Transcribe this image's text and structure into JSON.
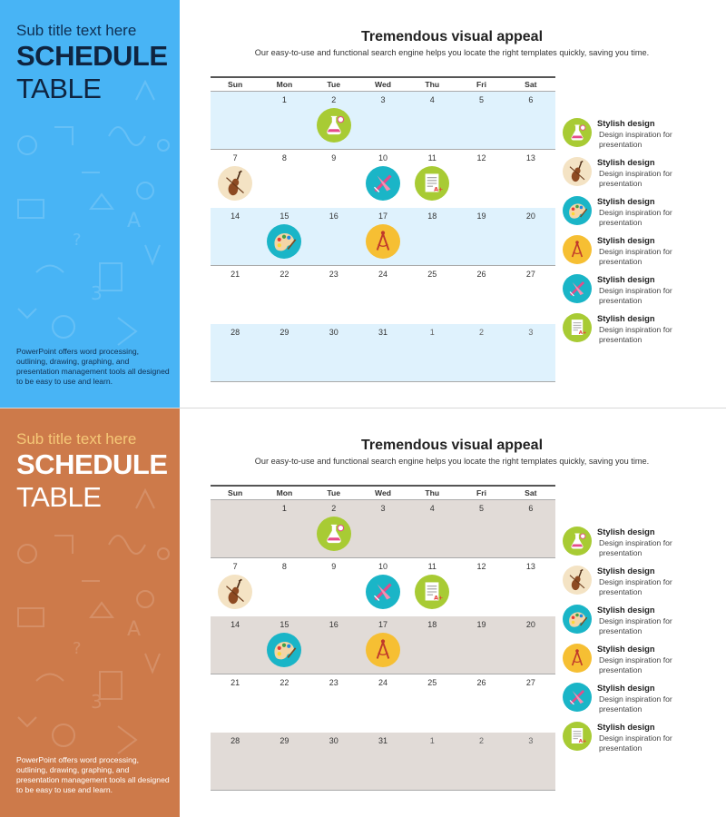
{
  "slides": [
    {
      "theme": "blue",
      "side_color": "#48b4f5",
      "subtitle": "Sub title text here",
      "heading_bold": "SCHEDULE",
      "heading_light": "TABLE",
      "side_text": "PowerPoint offers word processing, outlining, drawing, graphing, and presentation management tools all designed to be easy to use and learn.",
      "title": "Tremendous visual appeal",
      "description": "Our easy-to-use and functional search engine helps you locate the right templates quickly, saving you time.",
      "calendar": {
        "days": [
          "Sun",
          "Mon",
          "Tue",
          "Wed",
          "Thu",
          "Fri",
          "Sat"
        ],
        "weeks": [
          [
            {
              "n": ""
            },
            {
              "n": "1"
            },
            {
              "n": "2",
              "icon": "flask-icon"
            },
            {
              "n": "3"
            },
            {
              "n": "4"
            },
            {
              "n": "5"
            },
            {
              "n": "6"
            }
          ],
          [
            {
              "n": "7",
              "icon": "violin-icon"
            },
            {
              "n": "8"
            },
            {
              "n": "9"
            },
            {
              "n": "10",
              "icon": "ruler-icon"
            },
            {
              "n": "11",
              "icon": "document-icon"
            },
            {
              "n": "12"
            },
            {
              "n": "13"
            }
          ],
          [
            {
              "n": "14"
            },
            {
              "n": "15",
              "icon": "palette-icon"
            },
            {
              "n": "16"
            },
            {
              "n": "17",
              "icon": "compass-icon"
            },
            {
              "n": "18"
            },
            {
              "n": "19"
            },
            {
              "n": "20"
            }
          ],
          [
            {
              "n": "21"
            },
            {
              "n": "22"
            },
            {
              "n": "23"
            },
            {
              "n": "24"
            },
            {
              "n": "25"
            },
            {
              "n": "26"
            },
            {
              "n": "27"
            }
          ],
          [
            {
              "n": "28"
            },
            {
              "n": "29"
            },
            {
              "n": "30"
            },
            {
              "n": "31"
            },
            {
              "n": "1",
              "dim": true
            },
            {
              "n": "2",
              "dim": true
            },
            {
              "n": "3",
              "dim": true
            }
          ]
        ]
      },
      "legend": [
        {
          "icon": "flask-icon",
          "title": "Stylish design",
          "text": "Design inspiration for presentation"
        },
        {
          "icon": "violin-icon",
          "title": "Stylish design",
          "text": "Design inspiration for presentation"
        },
        {
          "icon": "palette-icon",
          "title": "Stylish design",
          "text": "Design inspiration for presentation"
        },
        {
          "icon": "compass-icon",
          "title": "Stylish design",
          "text": "Design inspiration for presentation"
        },
        {
          "icon": "ruler-icon",
          "title": "Stylish design",
          "text": "Design inspiration for presentation"
        },
        {
          "icon": "document-icon",
          "title": "Stylish design",
          "text": "Design inspiration for presentation"
        }
      ]
    },
    {
      "theme": "orange",
      "side_color": "#cd7a4a",
      "subtitle": "Sub title text here",
      "heading_bold": "SCHEDULE",
      "heading_light": "TABLE",
      "side_text": "PowerPoint offers word processing, outlining, drawing, graphing, and presentation management tools all designed to be easy to use and learn.",
      "title": "Tremendous visual appeal",
      "description": "Our easy-to-use and functional search engine helps you locate the right templates quickly, saving you time.",
      "calendar": {
        "days": [
          "Sun",
          "Mon",
          "Tue",
          "Wed",
          "Thu",
          "Fri",
          "Sat"
        ],
        "weeks": [
          [
            {
              "n": ""
            },
            {
              "n": "1"
            },
            {
              "n": "2",
              "icon": "flask-icon"
            },
            {
              "n": "3"
            },
            {
              "n": "4"
            },
            {
              "n": "5"
            },
            {
              "n": "6"
            }
          ],
          [
            {
              "n": "7",
              "icon": "violin-icon"
            },
            {
              "n": "8"
            },
            {
              "n": "9"
            },
            {
              "n": "10",
              "icon": "ruler-icon"
            },
            {
              "n": "11",
              "icon": "document-icon"
            },
            {
              "n": "12"
            },
            {
              "n": "13"
            }
          ],
          [
            {
              "n": "14"
            },
            {
              "n": "15",
              "icon": "palette-icon"
            },
            {
              "n": "16"
            },
            {
              "n": "17",
              "icon": "compass-icon"
            },
            {
              "n": "18"
            },
            {
              "n": "19"
            },
            {
              "n": "20"
            }
          ],
          [
            {
              "n": "21"
            },
            {
              "n": "22"
            },
            {
              "n": "23"
            },
            {
              "n": "24"
            },
            {
              "n": "25"
            },
            {
              "n": "26"
            },
            {
              "n": "27"
            }
          ],
          [
            {
              "n": "28"
            },
            {
              "n": "29"
            },
            {
              "n": "30"
            },
            {
              "n": "31"
            },
            {
              "n": "1",
              "dim": true
            },
            {
              "n": "2",
              "dim": true
            },
            {
              "n": "3",
              "dim": true
            }
          ]
        ]
      },
      "legend": [
        {
          "icon": "flask-icon",
          "title": "Stylish design",
          "text": "Design inspiration for presentation"
        },
        {
          "icon": "violin-icon",
          "title": "Stylish design",
          "text": "Design inspiration for presentation"
        },
        {
          "icon": "palette-icon",
          "title": "Stylish design",
          "text": "Design inspiration for presentation"
        },
        {
          "icon": "compass-icon",
          "title": "Stylish design",
          "text": "Design inspiration for presentation"
        },
        {
          "icon": "ruler-icon",
          "title": "Stylish design",
          "text": "Design inspiration for presentation"
        },
        {
          "icon": "document-icon",
          "title": "Stylish design",
          "text": "Design inspiration for presentation"
        }
      ]
    }
  ],
  "icon_colors": {
    "flask-icon": "#a8cb34",
    "violin-icon": "#f4e3c4",
    "palette-icon": "#1ab5c7",
    "compass-icon": "#f6bf33",
    "ruler-icon": "#1ab5c7",
    "document-icon": "#a8cb34"
  }
}
